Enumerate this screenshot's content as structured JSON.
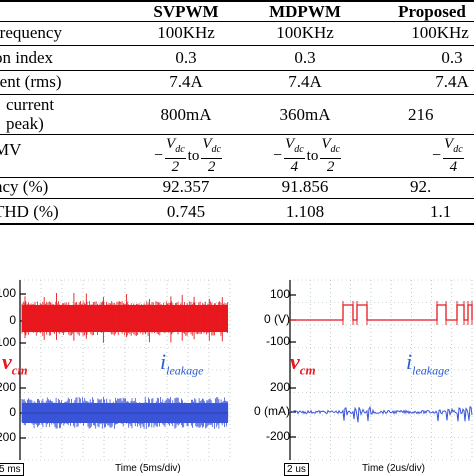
{
  "table": {
    "headers": [
      "SVPWM",
      "MDPWM",
      "Proposed"
    ],
    "rows": [
      {
        "label": "frequency",
        "values": [
          "100KHz",
          "100KHz",
          "100KHz"
        ]
      },
      {
        "label": "on index",
        "values": [
          "0.3",
          "0.3",
          "0.3"
        ]
      },
      {
        "label": "rent (rms)",
        "values": [
          "7.4A",
          "7.4A",
          "7.4A"
        ]
      },
      {
        "label_line1": "current",
        "label_line2": "peak)",
        "values": [
          "800mA",
          "360mA",
          "216"
        ]
      },
      {
        "label": "MV",
        "fractions": [
          {
            "neg_num": "V",
            "neg_sub": "dc",
            "neg_den": "2",
            "to": "to",
            "pos_num": "V",
            "pos_sub": "dc",
            "pos_den": "2"
          },
          {
            "neg_num": "V",
            "neg_sub": "dc",
            "neg_den": "4",
            "to": "to",
            "pos_num": "V",
            "pos_sub": "dc",
            "pos_den": "2"
          },
          {
            "neg_num": "V",
            "neg_sub": "dc",
            "neg_den": "4"
          }
        ]
      },
      {
        "label": "ncy (%)",
        "values": [
          "92.357",
          "91.856",
          "92."
        ]
      },
      {
        "label": "THD (%)",
        "values": [
          "0.745",
          "1.108",
          "1.1"
        ]
      }
    ]
  },
  "left_panel": {
    "top_ticks": [
      "100",
      "0",
      "100"
    ],
    "bottom_ticks": [
      "200",
      "0",
      "200"
    ],
    "vcm_symbol": "v",
    "vcm_sub": "cm",
    "ileak_symbol": "i",
    "ileak_sub": "leakage",
    "time_div_box": "5 ms",
    "time_caption": "Time (5ms/div)",
    "trace_colors": {
      "vcm": "#e8181e",
      "ileak": "#3b55d9"
    }
  },
  "right_panel": {
    "top_ticks": [
      "100",
      "0 (V)",
      "-100"
    ],
    "bottom_ticks": [
      "200",
      "0 (mA)",
      "-200"
    ],
    "vcm_symbol": "v",
    "vcm_sub": "cm",
    "ileak_symbol": "i",
    "ileak_sub": "leakage",
    "time_div_box": "2 us",
    "time_caption": "Time (2us/div)",
    "trace_colors": {
      "vcm": "#e8181e",
      "ileak": "#3b55d9"
    }
  }
}
